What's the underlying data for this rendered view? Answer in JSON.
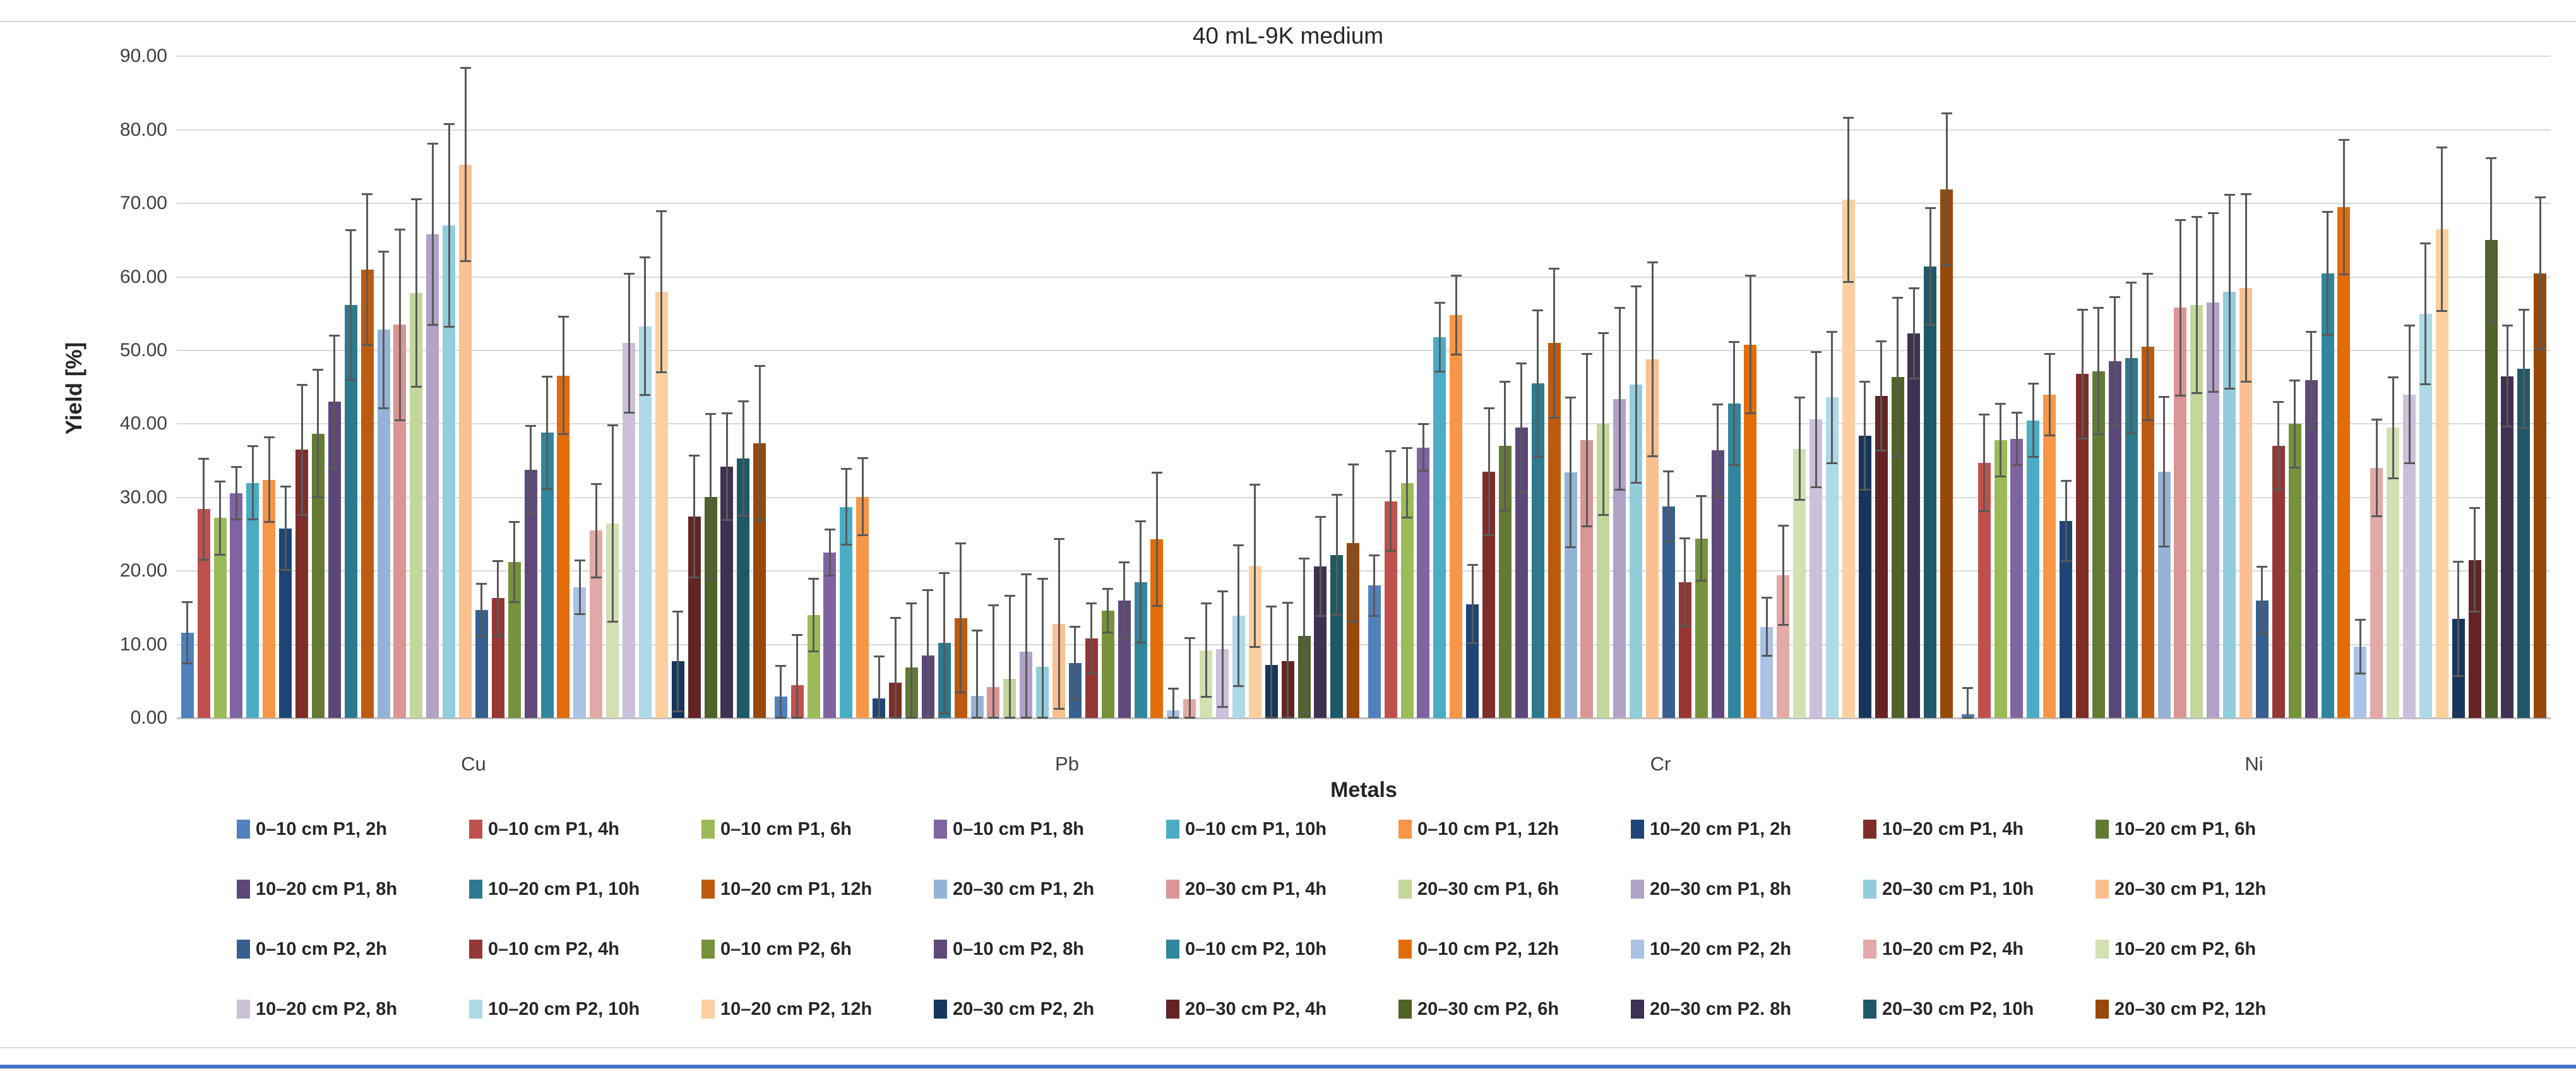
{
  "window": {
    "background": "#ffffff",
    "bottom_bar_color": "#4472c4"
  },
  "chart_data": {
    "type": "bar",
    "title": "40 mL-9K medium",
    "xlabel": "Metals",
    "ylabel": "Yield [%]",
    "ylim": [
      0,
      90
    ],
    "ytick_step": 10,
    "ytick_labels": [
      "0.00",
      "10.00",
      "20.00",
      "30.00",
      "40.00",
      "50.00",
      "60.00",
      "70.00",
      "80.00",
      "90.00"
    ],
    "grid": true,
    "legend_position": "bottom",
    "legend_columns": 9,
    "error_bars": true,
    "error_color": "#595959",
    "categories": [
      "Cu",
      "Pb",
      "Cr",
      "Ni"
    ],
    "series": [
      {
        "name": "0–10 cm P1, 2h",
        "color": "#4F81BD",
        "values": [
          11.6,
          2.9,
          18.0,
          0.5
        ],
        "errors": [
          4.2,
          4.2,
          4.2,
          3.6
        ]
      },
      {
        "name": "0–10 cm P1, 4h",
        "color": "#C0504D",
        "values": [
          28.4,
          4.5,
          29.5,
          34.7
        ],
        "errors": [
          6.9,
          6.8,
          6.8,
          6.6
        ]
      },
      {
        "name": "0–10 cm P1, 6h",
        "color": "#9BBB59",
        "values": [
          27.2,
          14.0,
          32.0,
          37.8
        ],
        "errors": [
          5.0,
          5.0,
          4.8,
          5.0
        ]
      },
      {
        "name": "0–10 cm P1, 8h",
        "color": "#8064A2",
        "values": [
          30.6,
          22.5,
          36.8,
          38.0
        ],
        "errors": [
          3.6,
          3.2,
          3.2,
          3.6
        ]
      },
      {
        "name": "0–10 cm P1, 10h",
        "color": "#4BACC6",
        "values": [
          32.0,
          28.7,
          51.8,
          40.5
        ],
        "errors": [
          5.0,
          5.2,
          4.7,
          5.0
        ]
      },
      {
        "name": "0–10 cm P1, 12h",
        "color": "#F79646",
        "values": [
          32.4,
          30.1,
          54.8,
          44.0
        ],
        "errors": [
          5.8,
          5.3,
          5.4,
          5.6
        ]
      },
      {
        "name": "10–20 cm P1, 2h",
        "color": "#1F4577",
        "values": [
          25.8,
          2.7,
          15.5,
          26.8
        ],
        "errors": [
          5.7,
          5.7,
          5.4,
          5.5
        ]
      },
      {
        "name": "10–20 cm P1, 4h",
        "color": "#7F2D29",
        "values": [
          36.5,
          4.8,
          33.5,
          46.8
        ],
        "errors": [
          8.9,
          8.9,
          8.7,
          8.8
        ]
      },
      {
        "name": "10–20 cm P1, 6h",
        "color": "#637A35",
        "values": [
          38.7,
          6.9,
          37.0,
          47.2
        ],
        "errors": [
          8.7,
          8.7,
          8.8,
          8.6
        ]
      },
      {
        "name": "10–20 cm P1, 8h",
        "color": "#5C477A",
        "values": [
          43.0,
          8.5,
          39.5,
          48.5
        ],
        "errors": [
          9.1,
          8.9,
          8.8,
          8.8
        ]
      },
      {
        "name": "10–20 cm P1, 10h",
        "color": "#2D7A8F",
        "values": [
          56.2,
          10.2,
          45.5,
          49.0
        ],
        "errors": [
          10.2,
          9.6,
          10.0,
          10.3
        ]
      },
      {
        "name": "10–20 cm P1, 12h",
        "color": "#BC5B10",
        "values": [
          61.0,
          13.6,
          51.0,
          50.5
        ],
        "errors": [
          10.3,
          10.2,
          10.2,
          10.0
        ]
      },
      {
        "name": "20–30 cm P1, 2h",
        "color": "#95B3D7",
        "values": [
          52.8,
          3.0,
          33.4,
          33.5
        ],
        "errors": [
          10.7,
          8.9,
          10.2,
          10.2
        ]
      },
      {
        "name": "20–30 cm P1, 4h",
        "color": "#D99694",
        "values": [
          53.5,
          4.2,
          37.8,
          55.8
        ],
        "errors": [
          13.0,
          11.2,
          11.8,
          12.0
        ]
      },
      {
        "name": "20–30 cm P1, 6h",
        "color": "#C3D69B",
        "values": [
          57.8,
          5.3,
          40.0,
          56.2
        ],
        "errors": [
          12.8,
          11.4,
          12.4,
          12.0
        ]
      },
      {
        "name": "20–30 cm P1, 8h",
        "color": "#B2A2C7",
        "values": [
          65.8,
          9.0,
          43.4,
          56.5
        ],
        "errors": [
          12.4,
          10.6,
          12.4,
          12.2
        ]
      },
      {
        "name": "20–30 cm P1, 10h",
        "color": "#92CDDC",
        "values": [
          67.0,
          7.0,
          45.4,
          58.0
        ],
        "errors": [
          13.8,
          12.0,
          13.4,
          13.2
        ]
      },
      {
        "name": "20–30 cm P1, 12h",
        "color": "#FAC08F",
        "values": [
          75.3,
          12.8,
          48.8,
          58.5
        ],
        "errors": [
          13.2,
          11.6,
          13.2,
          12.8
        ]
      },
      {
        "name": "0–10 cm P2, 2h",
        "color": "#376091",
        "values": [
          14.7,
          7.5,
          28.8,
          16.0
        ],
        "errors": [
          3.6,
          5.0,
          4.8,
          4.6
        ]
      },
      {
        "name": "0–10 cm P2, 4h",
        "color": "#953735",
        "values": [
          16.3,
          10.8,
          18.5,
          37.0
        ],
        "errors": [
          5.1,
          4.8,
          6.0,
          6.0
        ]
      },
      {
        "name": "0–10 cm P2, 6h",
        "color": "#76923C",
        "values": [
          21.2,
          14.6,
          24.4,
          40.0
        ],
        "errors": [
          5.5,
          3.0,
          5.8,
          6.0
        ]
      },
      {
        "name": "0–10 cm P2, 8h",
        "color": "#5F497A",
        "values": [
          33.8,
          16.0,
          36.4,
          46.0
        ],
        "errors": [
          6.0,
          5.2,
          6.3,
          6.6
        ]
      },
      {
        "name": "0–10 cm P2, 10h",
        "color": "#31859C",
        "values": [
          38.8,
          18.5,
          42.8,
          60.5
        ],
        "errors": [
          7.7,
          8.3,
          8.4,
          8.4
        ]
      },
      {
        "name": "0–10 cm P2, 12h",
        "color": "#E36C0A",
        "values": [
          46.6,
          24.3,
          50.8,
          69.5
        ],
        "errors": [
          8.0,
          9.1,
          9.4,
          9.2
        ]
      },
      {
        "name": "10–20 cm P2, 2h",
        "color": "#A9C2E5",
        "values": [
          17.8,
          1.0,
          12.4,
          9.7
        ],
        "errors": [
          3.7,
          3.0,
          4.0,
          3.7
        ]
      },
      {
        "name": "10–20 cm P2, 4h",
        "color": "#E2A9A7",
        "values": [
          25.5,
          2.6,
          19.4,
          34.0
        ],
        "errors": [
          6.4,
          8.3,
          6.8,
          6.6
        ]
      },
      {
        "name": "10–20 cm P2, 6h",
        "color": "#D2E0B2",
        "values": [
          26.5,
          9.2,
          36.6,
          39.5
        ],
        "errors": [
          13.4,
          6.4,
          7.0,
          6.9
        ]
      },
      {
        "name": "10–20 cm P2, 8h",
        "color": "#CBC0D9",
        "values": [
          51.0,
          9.4,
          40.6,
          44.0
        ],
        "errors": [
          9.5,
          7.9,
          9.2,
          9.4
        ]
      },
      {
        "name": "10–20 cm P2, 10h",
        "color": "#AEDAE7",
        "values": [
          53.3,
          13.9,
          43.6,
          55.0
        ],
        "errors": [
          9.4,
          9.6,
          9.0,
          9.6
        ]
      },
      {
        "name": "10–20 cm P2, 12h",
        "color": "#FBCF9F",
        "values": [
          58.0,
          20.7,
          70.5,
          66.5
        ],
        "errors": [
          11.0,
          11.1,
          11.2,
          11.2
        ]
      },
      {
        "name": "20–30 cm P2, 2h",
        "color": "#16365C",
        "values": [
          7.7,
          7.2,
          38.4,
          13.5
        ],
        "errors": [
          6.8,
          8.0,
          7.4,
          7.8
        ]
      },
      {
        "name": "20–30 cm P2, 4h",
        "color": "#632423",
        "values": [
          27.4,
          7.7,
          43.8,
          21.5
        ],
        "errors": [
          8.3,
          8.0,
          7.5,
          7.1
        ]
      },
      {
        "name": "20–30 cm P2, 6h",
        "color": "#4F6228",
        "values": [
          30.1,
          11.2,
          46.4,
          65.0
        ],
        "errors": [
          11.3,
          10.5,
          10.8,
          11.2
        ]
      },
      {
        "name": "20–30 cm P2. 8h",
        "color": "#3F3151",
        "values": [
          34.2,
          20.6,
          52.3,
          46.5
        ],
        "errors": [
          7.3,
          6.8,
          6.2,
          6.9
        ]
      },
      {
        "name": "20–30 cm P2, 10h",
        "color": "#1F5967",
        "values": [
          35.3,
          22.2,
          61.4,
          47.5
        ],
        "errors": [
          7.8,
          8.2,
          8.0,
          8.1
        ]
      },
      {
        "name": "20–30 cm P2, 12h",
        "color": "#97480B",
        "values": [
          37.4,
          23.8,
          71.9,
          60.5
        ],
        "errors": [
          10.5,
          10.7,
          10.4,
          10.4
        ]
      }
    ]
  }
}
